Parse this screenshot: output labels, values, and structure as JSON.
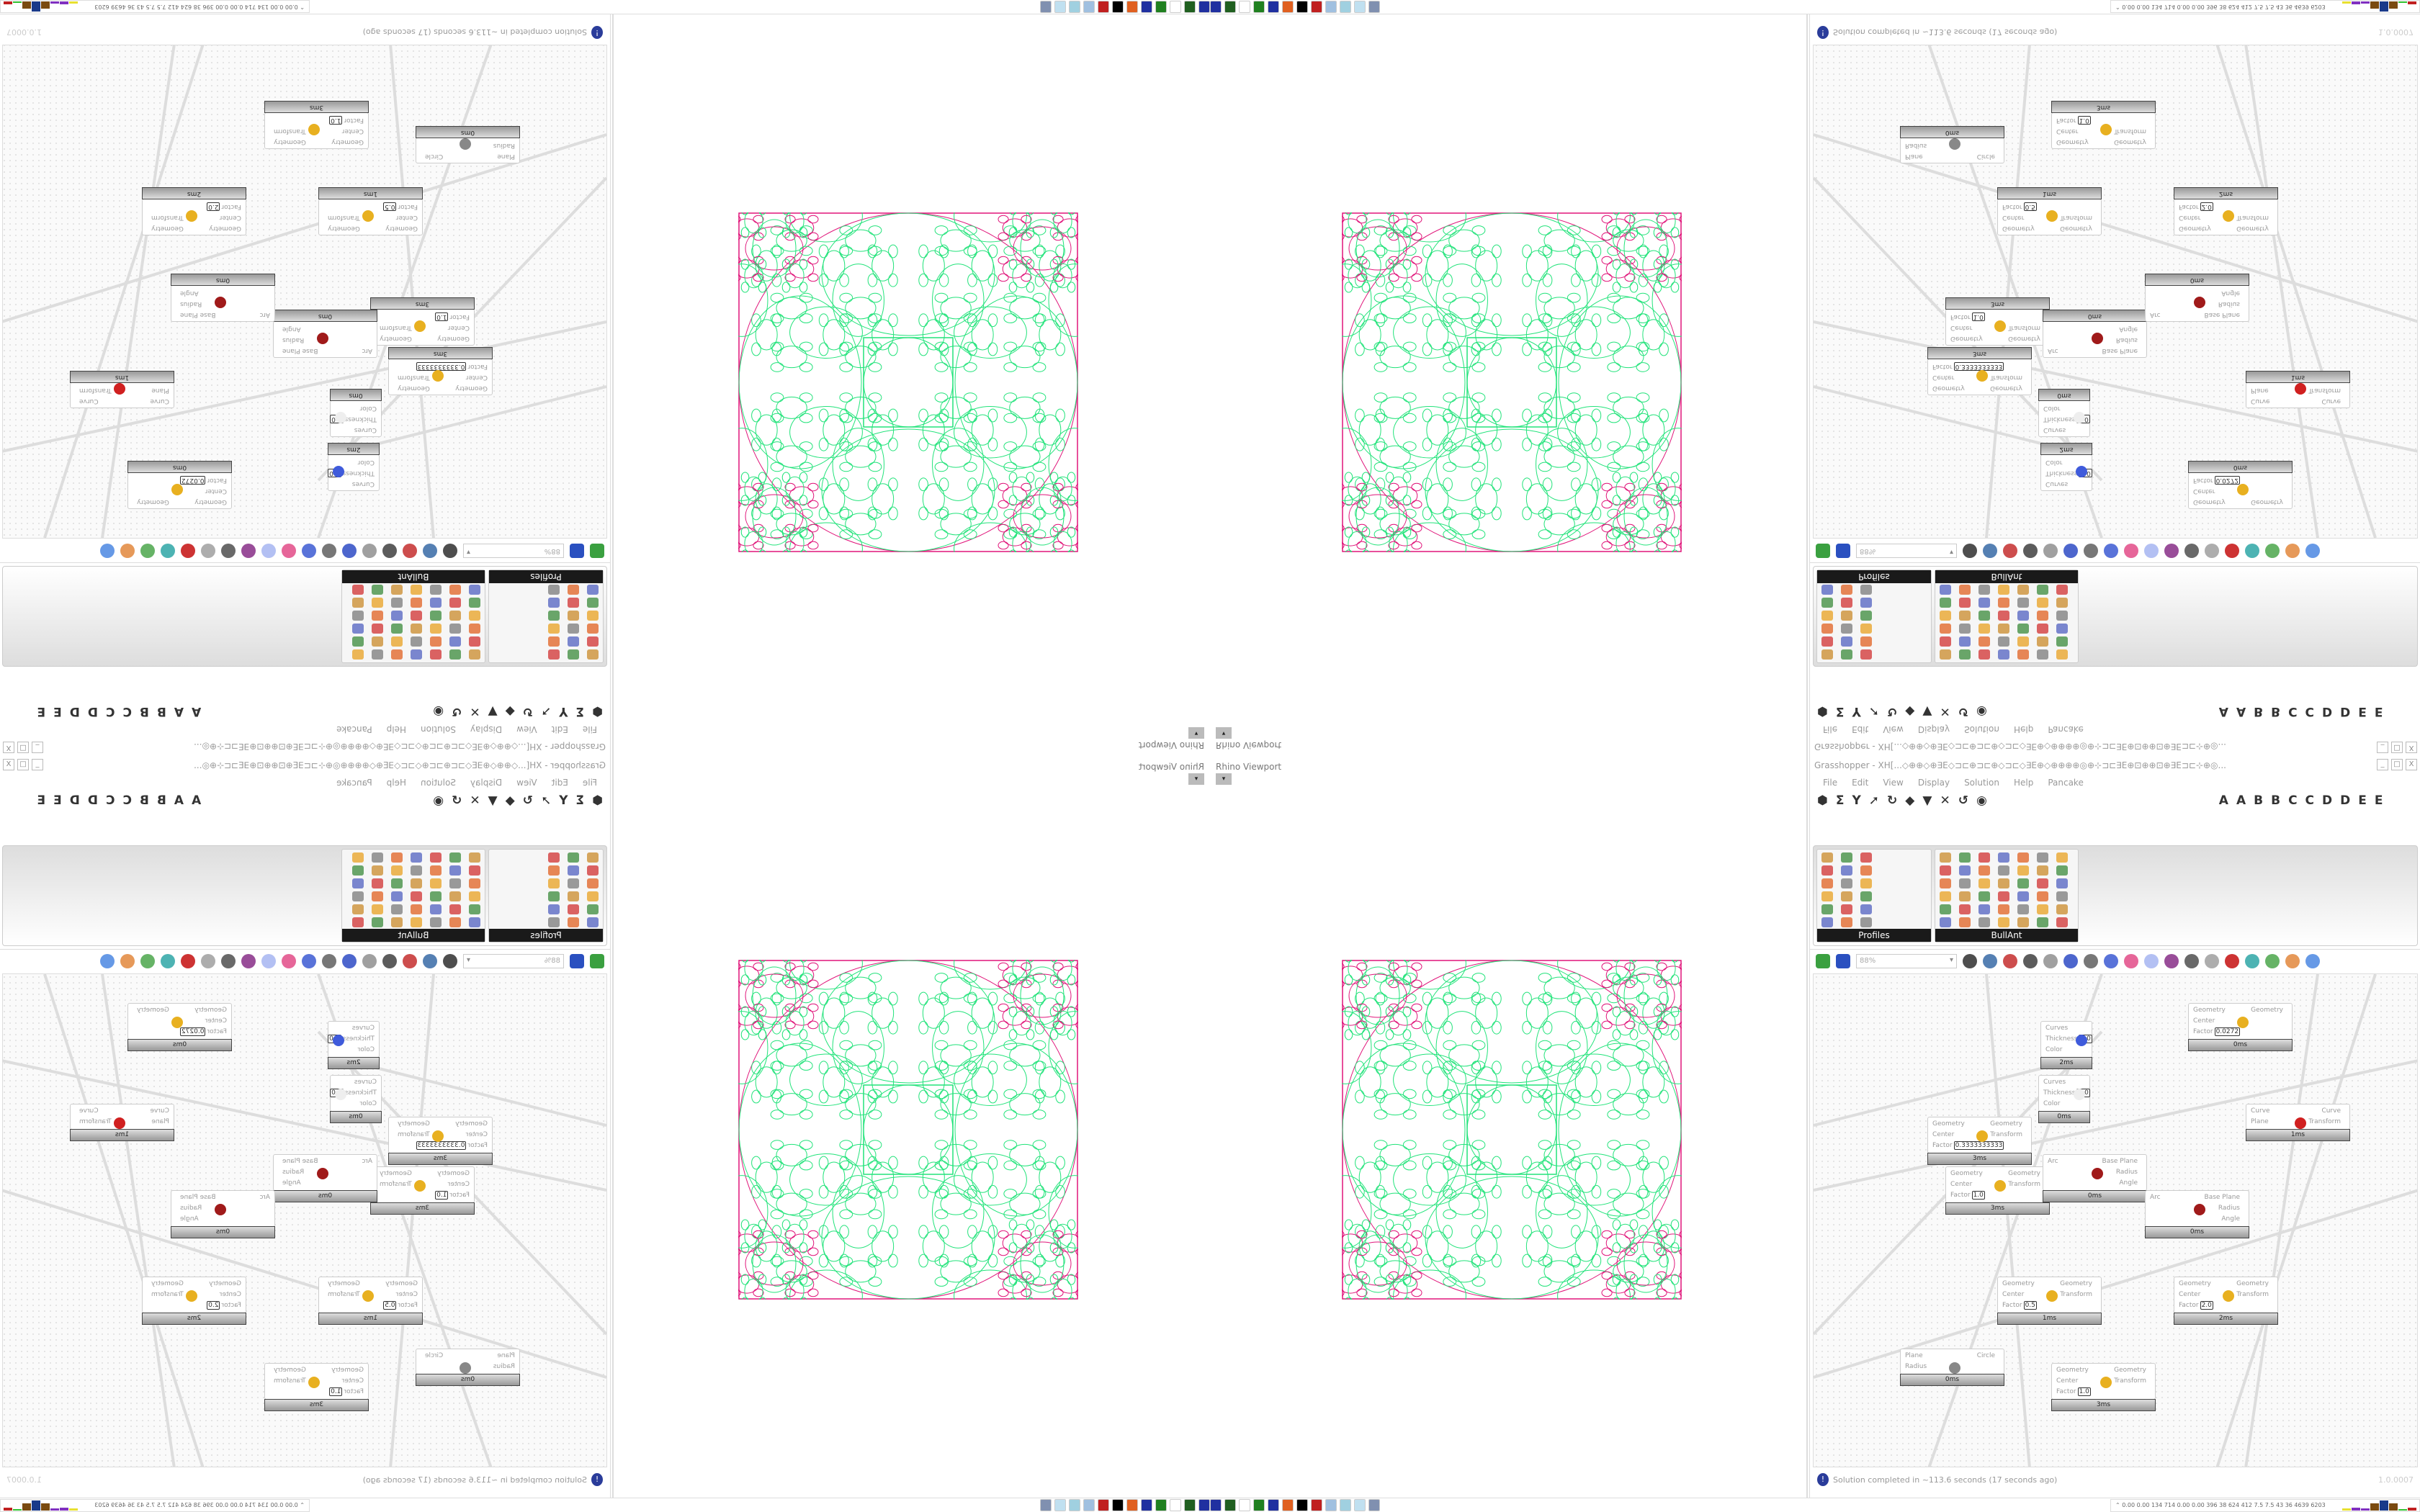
{
  "viewport": {
    "label": "Rhino Viewport",
    "dropdown_icon": "chevron-down-icon"
  },
  "figure": {
    "colors": {
      "outer": "#e0157a",
      "inner": "#22e37a"
    }
  },
  "grasshopper": {
    "title": "Grasshopper - XH[...◇⊕⊕◇⊕∃E◇⊐⊏⊕⊐⊏⊕◇⊐⊏◇∃E⊕◇⊕⊕⊕⊕◎⊕⊹⊐⊏∃E⊕⊡⊕⊕⊡⊕∃E⊐⊏⊹⊕◎...",
    "window_buttons": [
      "_",
      "□",
      "X"
    ],
    "menu": [
      "File",
      "Edit",
      "View",
      "Display",
      "Solution",
      "Help",
      "Pancake"
    ],
    "component_tabs": [
      "A",
      "A",
      "B",
      "B",
      "C",
      "C",
      "D",
      "D",
      "E",
      "E"
    ],
    "palette_groups": [
      "Profiles",
      "BullAnt"
    ],
    "zoom": "88%",
    "nodes": [
      {
        "inputs": [
          "Curves",
          "Thickness",
          "Color"
        ],
        "values": {
          "Thickness": "1.0"
        },
        "outputs": [],
        "time": "2ms",
        "color": "#3f5bdb"
      },
      {
        "inputs": [
          "Curves",
          "Thickness",
          "Color"
        ],
        "values": {
          "Thickness": "1.0"
        },
        "outputs": [],
        "time": "0ms",
        "color": "#eeeeee"
      },
      {
        "inputs": [
          "Geometry",
          "Center",
          "Factor"
        ],
        "values": {
          "Factor": "0.3333333333"
        },
        "outputs": [
          "Geometry",
          "Transform"
        ],
        "time": "3ms",
        "color": "#e8b020"
      },
      {
        "inputs": [
          "Geometry",
          "Center",
          "Factor"
        ],
        "values": {
          "Factor": "1.0"
        },
        "outputs": [
          "Geometry",
          "Transform"
        ],
        "time": "3ms",
        "color": "#e8b020"
      },
      {
        "inputs": [
          "Arc"
        ],
        "values": {},
        "outputs": [
          "Base Plane",
          "Radius",
          "Angle"
        ],
        "time": "0ms",
        "color": "#a01a1a"
      },
      {
        "inputs": [
          "Geometry",
          "Center",
          "Factor"
        ],
        "values": {
          "Factor": "0.5"
        },
        "outputs": [
          "Geometry",
          "Transform"
        ],
        "time": "1ms",
        "color": "#e8b020"
      },
      {
        "inputs": [
          "Arc"
        ],
        "values": {},
        "outputs": [
          "Base Plane",
          "Radius",
          "Angle"
        ],
        "time": "0ms",
        "color": "#a01a1a"
      },
      {
        "inputs": [
          "Geometry",
          "Center",
          "Factor"
        ],
        "values": {
          "Factor": "2.0"
        },
        "outputs": [
          "Geometry",
          "Transform"
        ],
        "time": "2ms",
        "color": "#e8b020"
      },
      {
        "inputs": [
          "Plane",
          "Radius"
        ],
        "values": {},
        "outputs": [
          "Circle"
        ],
        "time": "0ms",
        "color": "#888888"
      },
      {
        "inputs": [
          "Geometry",
          "Center",
          "Factor"
        ],
        "values": {
          "Factor": "1.0"
        },
        "outputs": [
          "Geometry",
          "Transform"
        ],
        "time": "3ms",
        "color": "#e8b020"
      },
      {
        "inputs": [
          "Curve",
          "Plane"
        ],
        "values": {},
        "outputs": [
          "Curve",
          "Transform"
        ],
        "time": "1ms",
        "color": "#d02020"
      },
      {
        "inputs": [
          "Geometry",
          "Center",
          "Factor"
        ],
        "values": {
          "Factor": "0.0272"
        },
        "outputs": [
          "Geometry"
        ],
        "time": "0ms",
        "color": "#e8b020"
      }
    ],
    "status": {
      "icon": "info-icon",
      "text": "Solution completed in ~113.6 seconds (17 seconds ago)",
      "version": "1.0.0007"
    }
  },
  "taskbar": {
    "stats": "0.00 0.00  134  714  0.00 0.00  396   38   624  412  7.5  7.5   43   36  4639 6203",
    "stats_icon": "chevron-up-icon"
  }
}
